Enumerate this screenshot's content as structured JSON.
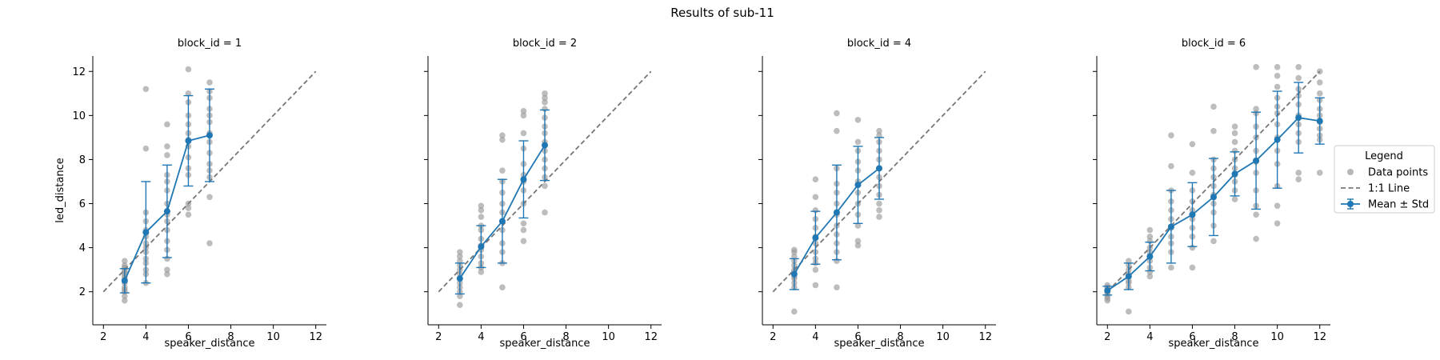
{
  "suptitle": "Results of sub-11",
  "colors": {
    "points": "#999999",
    "identity": "#777777",
    "mean": "#1f77b4",
    "axis": "#000000"
  },
  "legend": {
    "title": "Legend",
    "placement": "right-center",
    "items": [
      {
        "label": "Data points",
        "style": "point"
      },
      {
        "label": "1:1 Line",
        "style": "dashed"
      },
      {
        "label": "Mean ± Std",
        "style": "errorbar"
      }
    ]
  },
  "chart_data": [
    {
      "type": "scatter",
      "title": "block_id = 1",
      "xlabel": "speaker_distance",
      "ylabel": "led_distance",
      "xlim": [
        1.5,
        12.5
      ],
      "ylim": [
        0.5,
        12.7
      ],
      "xticks": [
        2,
        4,
        6,
        8,
        10,
        12
      ],
      "yticks": [
        2,
        4,
        6,
        8,
        10,
        12
      ],
      "grid": false,
      "identity_line": [
        2,
        12
      ],
      "scatter": [
        {
          "x": 3,
          "y": [
            1.6,
            1.8,
            2.0,
            2.1,
            2.2,
            2.4,
            2.5,
            2.6,
            2.7,
            2.8,
            2.9,
            3.0,
            3.1,
            3.2,
            3.4
          ]
        },
        {
          "x": 4,
          "y": [
            2.4,
            2.8,
            3.0,
            3.3,
            3.5,
            3.8,
            4.0,
            4.2,
            4.5,
            4.8,
            5.2,
            5.6,
            8.5,
            11.2
          ]
        },
        {
          "x": 5,
          "y": [
            2.8,
            3.0,
            3.5,
            3.9,
            4.3,
            4.8,
            5.2,
            5.5,
            6.0,
            6.6,
            7.0,
            7.3,
            8.2,
            8.6,
            9.6
          ]
        },
        {
          "x": 6,
          "y": [
            5.5,
            5.8,
            6.0,
            7.3,
            7.6,
            8.1,
            8.6,
            8.9,
            9.2,
            9.6,
            10.0,
            10.6,
            11.0,
            12.1
          ]
        },
        {
          "x": 7,
          "y": [
            4.2,
            6.3,
            7.2,
            7.5,
            7.8,
            8.3,
            8.8,
            9.2,
            9.7,
            10.0,
            10.3,
            10.8,
            11.1,
            11.5
          ]
        }
      ],
      "mean": {
        "x": [
          3,
          4,
          5,
          6,
          7
        ],
        "y": [
          2.5,
          4.7,
          5.65,
          8.85,
          9.1
        ],
        "std": [
          0.55,
          2.3,
          2.1,
          2.05,
          2.1
        ]
      }
    },
    {
      "type": "scatter",
      "title": "block_id = 2",
      "xlabel": "speaker_distance",
      "ylabel": "",
      "xlim": [
        1.5,
        12.5
      ],
      "ylim": [
        0.5,
        12.7
      ],
      "xticks": [
        2,
        4,
        6,
        8,
        10,
        12
      ],
      "yticks": [
        2,
        4,
        6,
        8,
        10,
        12
      ],
      "grid": false,
      "identity_line": [
        2,
        12
      ],
      "scatter": [
        {
          "x": 3,
          "y": [
            1.4,
            1.8,
            2.0,
            2.2,
            2.4,
            2.6,
            2.8,
            3.0,
            3.2,
            3.4,
            3.6,
            3.8
          ]
        },
        {
          "x": 4,
          "y": [
            2.9,
            3.1,
            3.3,
            3.6,
            3.9,
            4.1,
            4.4,
            4.8,
            5.0,
            5.4,
            5.7,
            5.9
          ]
        },
        {
          "x": 5,
          "y": [
            2.2,
            3.3,
            3.8,
            4.2,
            4.8,
            5.2,
            5.6,
            6.0,
            6.5,
            7.0,
            7.5,
            8.9,
            9.1
          ]
        },
        {
          "x": 6,
          "y": [
            4.3,
            4.8,
            5.1,
            6.0,
            6.6,
            7.0,
            7.3,
            7.8,
            8.5,
            9.2,
            10.0,
            10.2
          ]
        },
        {
          "x": 7,
          "y": [
            5.6,
            6.8,
            7.2,
            7.6,
            8.0,
            8.4,
            8.8,
            9.2,
            9.5,
            9.9,
            10.3,
            10.6,
            10.8,
            11.0
          ]
        }
      ],
      "mean": {
        "x": [
          3,
          4,
          5,
          6,
          7
        ],
        "y": [
          2.6,
          4.05,
          5.2,
          7.1,
          8.65
        ],
        "std": [
          0.7,
          0.95,
          1.9,
          1.75,
          1.6
        ]
      }
    },
    {
      "type": "scatter",
      "title": "block_id = 4",
      "xlabel": "speaker_distance",
      "ylabel": "",
      "xlim": [
        1.5,
        12.5
      ],
      "ylim": [
        0.5,
        12.7
      ],
      "xticks": [
        2,
        4,
        6,
        8,
        10,
        12
      ],
      "yticks": [
        2,
        4,
        6,
        8,
        10,
        12
      ],
      "grid": false,
      "identity_line": [
        2,
        12
      ],
      "scatter": [
        {
          "x": 3,
          "y": [
            1.1,
            2.2,
            2.4,
            2.6,
            2.7,
            2.9,
            3.0,
            3.2,
            3.4,
            3.6,
            3.8,
            3.9
          ]
        },
        {
          "x": 4,
          "y": [
            2.3,
            3.0,
            3.3,
            3.5,
            3.8,
            4.2,
            4.5,
            4.9,
            5.3,
            5.7,
            6.3,
            7.1
          ]
        },
        {
          "x": 5,
          "y": [
            2.2,
            3.4,
            3.8,
            4.2,
            4.6,
            5.0,
            5.5,
            6.0,
            6.5,
            6.9,
            7.6,
            9.3,
            10.1
          ]
        },
        {
          "x": 6,
          "y": [
            4.1,
            4.3,
            5.0,
            5.5,
            6.0,
            6.5,
            7.0,
            7.5,
            7.9,
            8.4,
            8.8,
            9.8
          ]
        },
        {
          "x": 7,
          "y": [
            5.4,
            5.7,
            6.0,
            6.4,
            6.8,
            7.2,
            7.6,
            8.0,
            8.4,
            8.8,
            9.1,
            9.3
          ]
        }
      ],
      "mean": {
        "x": [
          3,
          4,
          5,
          6,
          7
        ],
        "y": [
          2.8,
          4.45,
          5.6,
          6.85,
          7.6
        ],
        "std": [
          0.7,
          1.2,
          2.15,
          1.75,
          1.4
        ]
      }
    },
    {
      "type": "scatter",
      "title": "block_id = 6",
      "xlabel": "speaker_distance",
      "ylabel": "",
      "xlim": [
        1.5,
        12.5
      ],
      "ylim": [
        0.5,
        12.7
      ],
      "xticks": [
        2,
        4,
        6,
        8,
        10,
        12
      ],
      "yticks": [
        2,
        4,
        6,
        8,
        10,
        12
      ],
      "grid": false,
      "identity_line": [
        2,
        12
      ],
      "scatter": [
        {
          "x": 2,
          "y": [
            1.6,
            1.7,
            1.8,
            1.9,
            2.0,
            2.0,
            2.1,
            2.1,
            2.2,
            2.2,
            2.3
          ]
        },
        {
          "x": 3,
          "y": [
            1.1,
            2.2,
            2.4,
            2.5,
            2.7,
            2.8,
            3.0,
            3.2,
            3.4
          ]
        },
        {
          "x": 4,
          "y": [
            2.7,
            2.9,
            3.1,
            3.4,
            3.6,
            3.8,
            4.0,
            4.3,
            4.5,
            4.8
          ]
        },
        {
          "x": 5,
          "y": [
            3.1,
            3.8,
            4.2,
            4.5,
            4.9,
            5.3,
            5.7,
            6.1,
            6.6,
            7.7,
            9.1
          ]
        },
        {
          "x": 6,
          "y": [
            3.1,
            4.0,
            4.5,
            4.9,
            5.3,
            5.7,
            6.1,
            6.6,
            7.4,
            8.7
          ]
        },
        {
          "x": 7,
          "y": [
            4.3,
            5.0,
            5.6,
            6.0,
            6.4,
            6.8,
            7.2,
            7.6,
            8.0,
            9.3,
            10.4
          ]
        },
        {
          "x": 8,
          "y": [
            6.2,
            6.6,
            7.0,
            7.3,
            7.6,
            8.0,
            8.4,
            8.8,
            9.2,
            9.5
          ]
        },
        {
          "x": 9,
          "y": [
            4.4,
            5.5,
            5.9,
            6.6,
            7.4,
            7.9,
            8.4,
            9.0,
            9.5,
            10.1,
            10.3,
            12.2
          ]
        },
        {
          "x": 10,
          "y": [
            5.1,
            5.9,
            6.8,
            7.8,
            8.4,
            9.0,
            9.6,
            10.1,
            10.4,
            10.8,
            11.3,
            11.8,
            12.2
          ]
        },
        {
          "x": 11,
          "y": [
            7.1,
            7.4,
            8.8,
            9.2,
            9.6,
            10.0,
            10.5,
            10.9,
            11.2,
            11.7,
            12.2
          ]
        },
        {
          "x": 12,
          "y": [
            7.4,
            8.9,
            9.1,
            9.4,
            9.7,
            10.0,
            10.3,
            10.7,
            11.0,
            11.5,
            12.0
          ]
        }
      ],
      "mean": {
        "x": [
          2,
          3,
          4,
          5,
          6,
          7,
          8,
          9,
          10,
          11,
          12
        ],
        "y": [
          2.05,
          2.7,
          3.6,
          4.95,
          5.5,
          6.3,
          7.35,
          7.95,
          8.9,
          9.9,
          9.75
        ],
        "std": [
          0.2,
          0.6,
          0.65,
          1.65,
          1.45,
          1.75,
          1.0,
          2.2,
          2.2,
          1.6,
          1.05
        ]
      }
    }
  ]
}
